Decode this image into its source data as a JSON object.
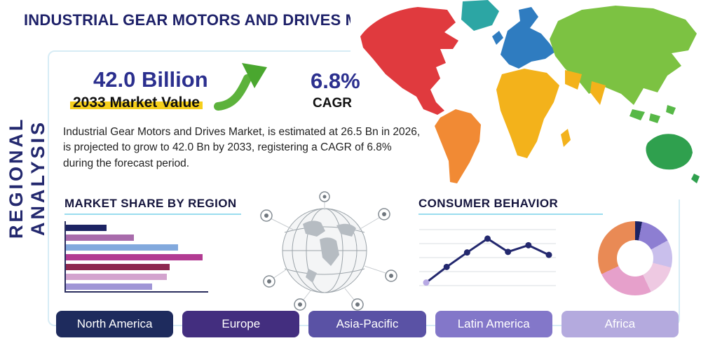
{
  "title": "INDUSTRIAL GEAR MOTORS AND DRIVES MARKET",
  "sidebar_label": "REGIONAL ANALYSIS",
  "stats": {
    "market_value": "42.0 Billion",
    "market_value_label": "2033 Market Value",
    "cagr_value": "6.8%",
    "cagr_label": "CAGR",
    "description": "Industrial Gear Motors and Drives Market, is estimated at 26.5 Bn in 2026, is projected to grow to 42.0 Bn by 2033, registering a CAGR of 6.8% during the forecast period."
  },
  "sections": {
    "market_share_title": "MARKET SHARE BY REGION",
    "consumer_behavior_title": "CONSUMER BEHAVIOR"
  },
  "regions": [
    {
      "label": "North America",
      "color": "#1e2b5d"
    },
    {
      "label": "Europe",
      "color": "#432e7f"
    },
    {
      "label": "Asia-Pacific",
      "color": "#5a52a5"
    },
    {
      "label": "Latin America",
      "color": "#8377c9"
    },
    {
      "label": "Africa",
      "color": "#b4aade"
    }
  ],
  "map": {
    "regions": [
      {
        "name": "north-america",
        "color": "#e03a3e"
      },
      {
        "name": "greenland",
        "color": "#2ca6a4"
      },
      {
        "name": "south-america",
        "color": "#f18a34"
      },
      {
        "name": "europe",
        "color": "#2f7cc0"
      },
      {
        "name": "africa",
        "color": "#f3b21b"
      },
      {
        "name": "middle-east-india",
        "color": "#f3b21b"
      },
      {
        "name": "asia",
        "color": "#7cc242"
      },
      {
        "name": "southeast-asia",
        "color": "#57b847"
      },
      {
        "name": "australia",
        "color": "#2fa04e"
      }
    ]
  },
  "chart_data": [
    {
      "type": "bar",
      "title": "MARKET SHARE BY REGION",
      "orientation": "horizontal",
      "values": [
        30,
        50,
        82,
        100,
        76,
        74,
        63
      ],
      "colors": [
        "#1c2363",
        "#a86bab",
        "#82a9dd",
        "#b23b92",
        "#8e2850",
        "#d3a3ce",
        "#a095d6"
      ],
      "note": "relative bar lengths, no axis labels shown"
    },
    {
      "type": "line",
      "title": "CONSUMER BEHAVIOR",
      "x": [
        1,
        2,
        3,
        4,
        5,
        6,
        7
      ],
      "y": [
        12,
        38,
        62,
        85,
        63,
        74,
        58
      ],
      "ylim": [
        0,
        100
      ],
      "grid": "horizontal",
      "line_color": "#23286e",
      "first_point_color": "#b7a9e4"
    },
    {
      "type": "pie",
      "style": "donut",
      "values": [
        3,
        14,
        12,
        14,
        25,
        32
      ],
      "colors": [
        "#1c2363",
        "#8d7ed2",
        "#c9bfec",
        "#eec9e2",
        "#e6a0cb",
        "#e98a55"
      ]
    }
  ]
}
